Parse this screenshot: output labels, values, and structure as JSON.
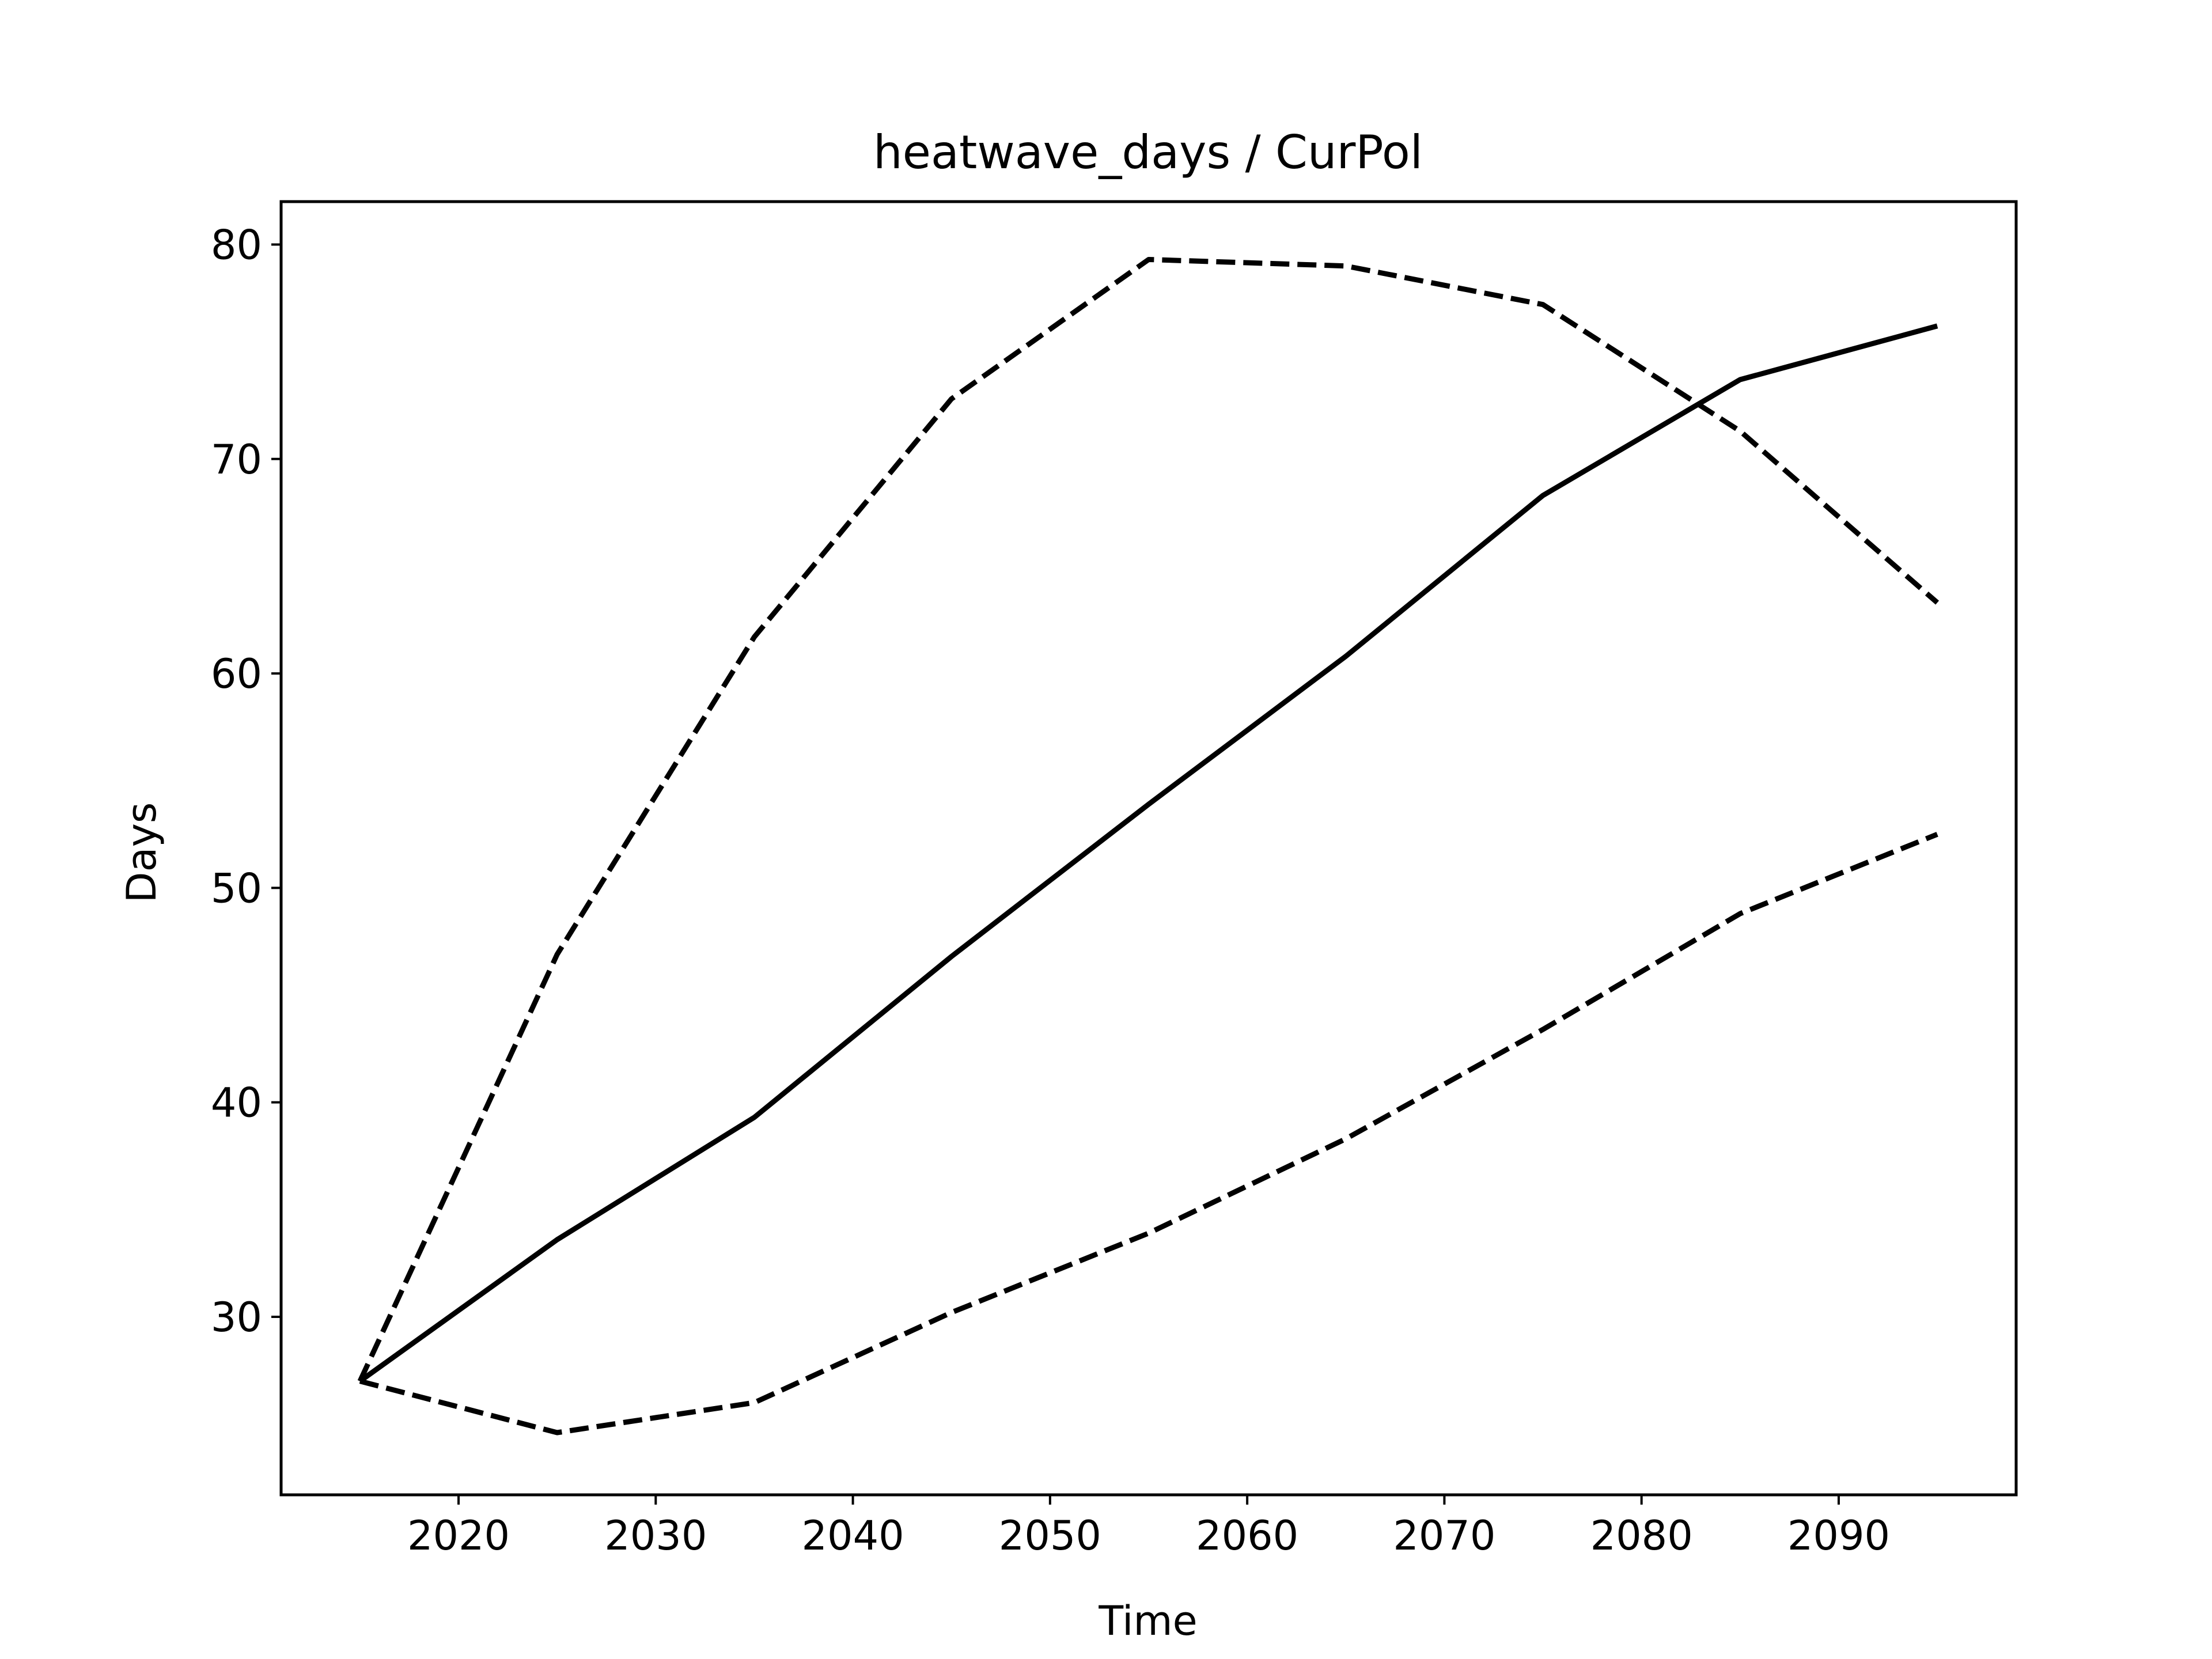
{
  "chart_data": {
    "type": "line",
    "title": "heatwave_days / CurPol",
    "xlabel": "Time",
    "ylabel": "Days",
    "xlim": [
      2011,
      2099
    ],
    "ylim": [
      21.7,
      82
    ],
    "xticks": [
      2020,
      2030,
      2040,
      2050,
      2060,
      2070,
      2080,
      2090
    ],
    "yticks": [
      30,
      40,
      50,
      60,
      70,
      80
    ],
    "grid": false,
    "legend": "none",
    "x": [
      2015,
      2025,
      2035,
      2045,
      2055,
      2065,
      2075,
      2085,
      2095
    ],
    "series": [
      {
        "style": "solid",
        "color": "#000000",
        "values": [
          27.0,
          33.6,
          39.3,
          46.8,
          53.9,
          60.8,
          68.3,
          73.7,
          76.2
        ]
      },
      {
        "style": "dashed",
        "color": "#000000",
        "values": [
          27.0,
          46.9,
          61.7,
          72.8,
          79.3,
          79.0,
          77.2,
          71.3,
          63.3
        ]
      },
      {
        "style": "dashed",
        "color": "#000000",
        "values": [
          27.0,
          24.6,
          26.0,
          30.2,
          33.9,
          38.3,
          43.4,
          48.8,
          52.5
        ]
      }
    ]
  }
}
